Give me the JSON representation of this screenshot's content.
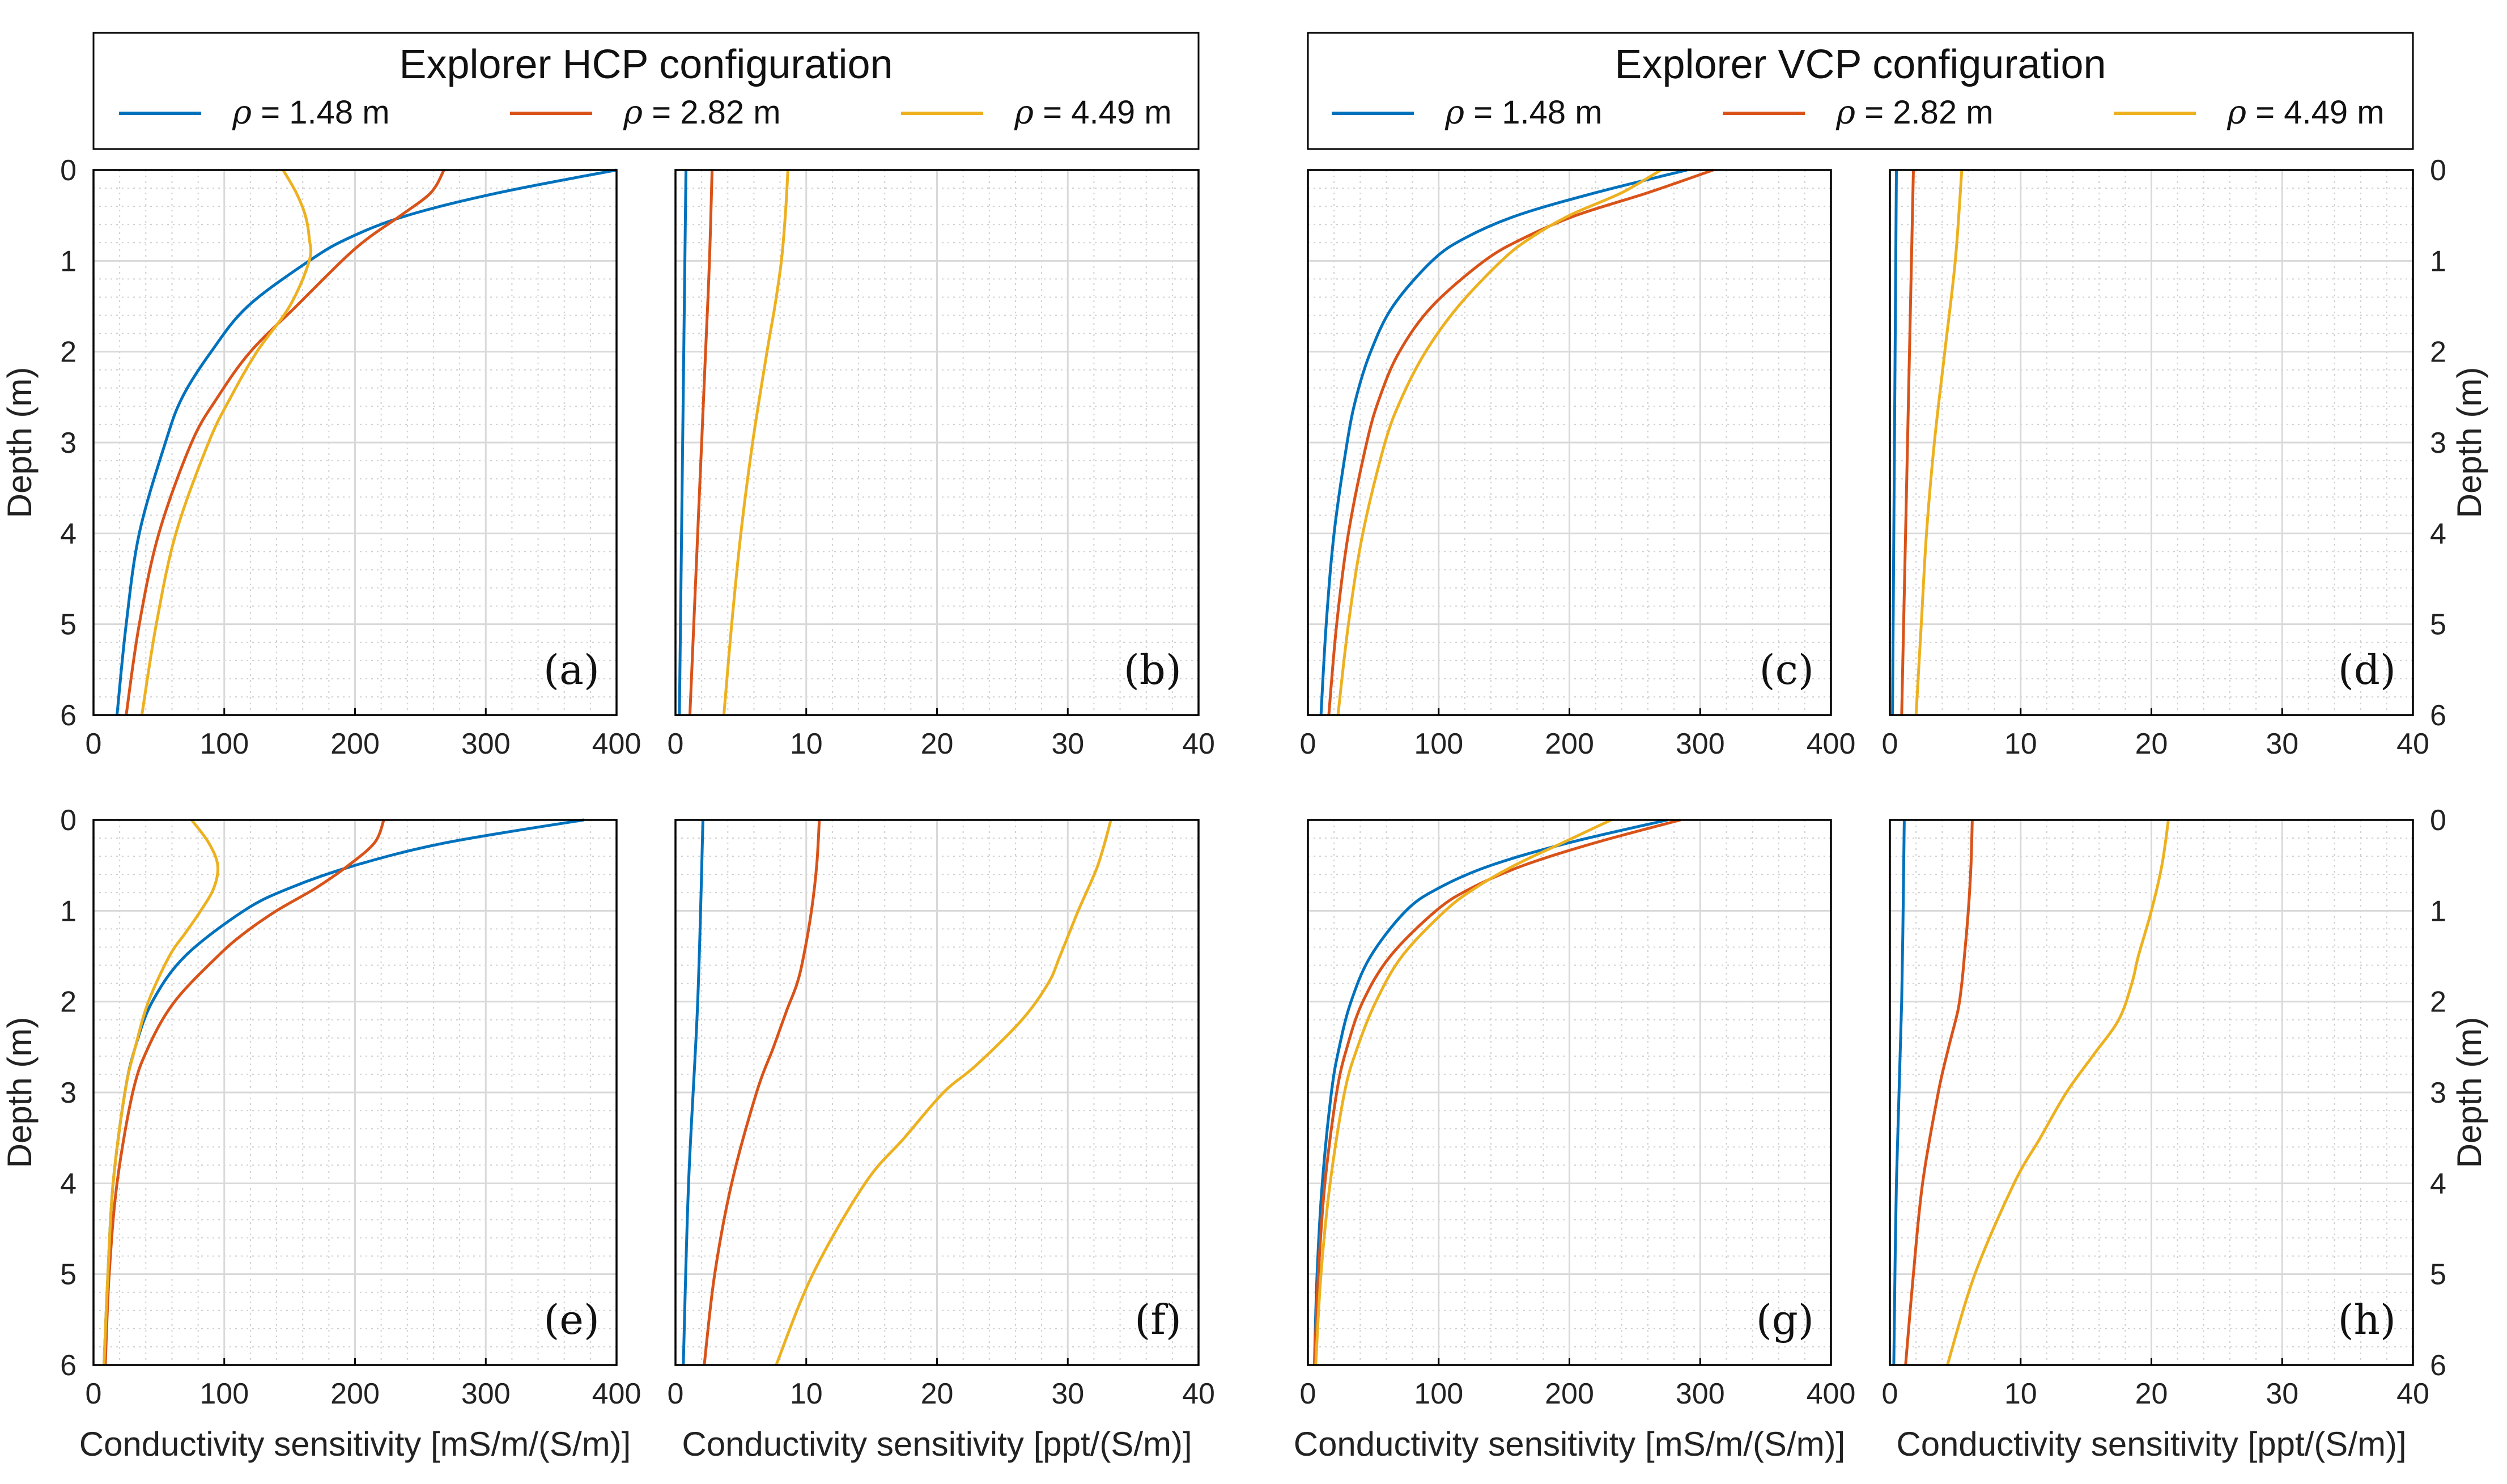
{
  "legends": [
    {
      "title": "Explorer HCP configuration",
      "entries": [
        {
          "symbol": "ρ",
          "text": " = 1.48 m",
          "color": "#0072BD"
        },
        {
          "symbol": "ρ",
          "text": " = 2.82 m",
          "color": "#D95319"
        },
        {
          "symbol": "ρ",
          "text": " = 4.49 m",
          "color": "#EDB120"
        }
      ]
    },
    {
      "title": "Explorer VCP configuration",
      "entries": [
        {
          "symbol": "ρ",
          "text": " = 1.48 m",
          "color": "#0072BD"
        },
        {
          "symbol": "ρ",
          "text": " = 2.82 m",
          "color": "#D95319"
        },
        {
          "symbol": "ρ",
          "text": " = 4.49 m",
          "color": "#EDB120"
        }
      ]
    }
  ],
  "chart_data": [
    {
      "id": "a",
      "type": "line",
      "panel_label": "(a)",
      "ylabel": "Depth (m)",
      "xlabel": "",
      "xlim": [
        0,
        400
      ],
      "ylim": [
        0,
        6
      ],
      "y_inverted": true,
      "xticks": [
        "0",
        "100",
        "200",
        "300",
        "400"
      ],
      "yticks": [
        "0",
        "1",
        "2",
        "3",
        "4",
        "5",
        "6"
      ],
      "grid": true,
      "y_axis_side": "left",
      "series": [
        {
          "name": "ρ = 1.48 m",
          "color": "#0072BD",
          "y": [
            0,
            0.25,
            0.5,
            0.75,
            1,
            1.5,
            2,
            2.5,
            3,
            4,
            5,
            6
          ],
          "x": [
            400,
            310,
            240,
            195,
            165,
            118,
            90,
            68,
            55,
            35,
            25,
            18
          ]
        },
        {
          "name": "ρ = 2.82 m",
          "color": "#D95319",
          "y": [
            0,
            0.25,
            0.5,
            0.75,
            1,
            1.5,
            2,
            2.5,
            3,
            4,
            5,
            6
          ],
          "x": [
            268,
            258,
            235,
            210,
            190,
            155,
            120,
            95,
            75,
            50,
            35,
            25
          ]
        },
        {
          "name": "ρ = 4.49 m",
          "color": "#EDB120",
          "y": [
            0,
            0.25,
            0.5,
            0.75,
            1,
            1.5,
            2,
            2.5,
            3,
            4,
            5,
            6
          ],
          "x": [
            145,
            155,
            162,
            165,
            165,
            150,
            125,
            105,
            88,
            63,
            48,
            37
          ]
        }
      ]
    },
    {
      "id": "b",
      "type": "line",
      "panel_label": "(b)",
      "ylabel": "",
      "xlabel": "",
      "xlim": [
        0,
        40
      ],
      "ylim": [
        0,
        6
      ],
      "y_inverted": true,
      "xticks": [
        "0",
        "10",
        "20",
        "30",
        "40"
      ],
      "yticks": [],
      "grid": true,
      "y_axis_side": "none",
      "series": [
        {
          "name": "ρ = 1.48 m",
          "color": "#0072BD",
          "y": [
            0,
            6
          ],
          "x": [
            0.8,
            0.3
          ]
        },
        {
          "name": "ρ = 2.82 m",
          "color": "#D95319",
          "y": [
            0,
            1,
            2,
            3,
            4,
            5,
            6
          ],
          "x": [
            2.8,
            2.6,
            2.3,
            2.0,
            1.7,
            1.4,
            1.1
          ]
        },
        {
          "name": "ρ = 4.49 m",
          "color": "#EDB120",
          "y": [
            0,
            0.5,
            1,
            1.5,
            2,
            3,
            4,
            5,
            6
          ],
          "x": [
            8.6,
            8.4,
            8.1,
            7.6,
            7.0,
            5.9,
            5.0,
            4.3,
            3.7
          ]
        }
      ]
    },
    {
      "id": "c",
      "type": "line",
      "panel_label": "(c)",
      "ylabel": "",
      "xlabel": "",
      "xlim": [
        0,
        400
      ],
      "ylim": [
        0,
        6
      ],
      "y_inverted": true,
      "xticks": [
        "0",
        "100",
        "200",
        "300",
        "400"
      ],
      "yticks": [],
      "grid": true,
      "y_axis_side": "none",
      "series": [
        {
          "name": "ρ = 1.48 m",
          "color": "#0072BD",
          "y": [
            0,
            0.25,
            0.5,
            0.75,
            1,
            1.5,
            2,
            2.5,
            3,
            4,
            5,
            6
          ],
          "x": [
            290,
            220,
            160,
            120,
            95,
            65,
            48,
            37,
            30,
            20,
            14,
            10
          ]
        },
        {
          "name": "ρ = 2.82 m",
          "color": "#D95319",
          "y": [
            0,
            0.25,
            0.5,
            0.75,
            1,
            1.5,
            2,
            2.5,
            3,
            4,
            5,
            6
          ],
          "x": [
            310,
            260,
            205,
            165,
            135,
            95,
            70,
            55,
            45,
            31,
            22,
            16
          ]
        },
        {
          "name": "ρ = 4.49 m",
          "color": "#EDB120",
          "y": [
            0,
            0.25,
            0.5,
            0.75,
            1,
            1.5,
            2,
            2.5,
            3,
            4,
            5,
            6
          ],
          "x": [
            270,
            240,
            200,
            170,
            148,
            115,
            90,
            72,
            59,
            42,
            31,
            23
          ]
        }
      ]
    },
    {
      "id": "d",
      "type": "line",
      "panel_label": "(d)",
      "ylabel": "Depth (m)",
      "xlabel": "",
      "xlim": [
        0,
        40
      ],
      "ylim": [
        0,
        6
      ],
      "y_inverted": true,
      "xticks": [
        "0",
        "10",
        "20",
        "30",
        "40"
      ],
      "yticks": [
        "0",
        "1",
        "2",
        "3",
        "4",
        "5",
        "6"
      ],
      "grid": true,
      "y_axis_side": "right",
      "series": [
        {
          "name": "ρ = 1.48 m",
          "color": "#0072BD",
          "y": [
            0,
            6
          ],
          "x": [
            0.5,
            0.2
          ]
        },
        {
          "name": "ρ = 2.82 m",
          "color": "#D95319",
          "y": [
            0,
            2,
            4,
            6
          ],
          "x": [
            1.8,
            1.5,
            1.2,
            0.9
          ]
        },
        {
          "name": "ρ = 4.49 m",
          "color": "#EDB120",
          "y": [
            0,
            1,
            2,
            3,
            4,
            5,
            6
          ],
          "x": [
            5.5,
            5.0,
            4.2,
            3.4,
            2.8,
            2.4,
            2.0
          ]
        }
      ]
    },
    {
      "id": "e",
      "type": "line",
      "panel_label": "(e)",
      "ylabel": "Depth (m)",
      "xlabel": "Conductivity sensitivity [mS/m/(S/m)]",
      "xlim": [
        0,
        400
      ],
      "ylim": [
        0,
        6
      ],
      "y_inverted": true,
      "xticks": [
        "0",
        "100",
        "200",
        "300",
        "400"
      ],
      "yticks": [
        "0",
        "1",
        "2",
        "3",
        "4",
        "5",
        "6"
      ],
      "grid": true,
      "y_axis_side": "left",
      "series": [
        {
          "name": "ρ = 1.48 m",
          "color": "#0072BD",
          "y": [
            0,
            0.25,
            0.5,
            0.75,
            1,
            1.5,
            2,
            2.5,
            3,
            4,
            5,
            6
          ],
          "x": [
            375,
            270,
            200,
            150,
            115,
            70,
            45,
            32,
            24,
            15,
            11,
            8
          ]
        },
        {
          "name": "ρ = 2.82 m",
          "color": "#D95319",
          "y": [
            0,
            0.25,
            0.5,
            0.75,
            1,
            1.25,
            1.5,
            2,
            2.5,
            3,
            4,
            5,
            6
          ],
          "x": [
            222,
            215,
            195,
            170,
            140,
            115,
            95,
            62,
            42,
            30,
            18,
            12,
            9
          ]
        },
        {
          "name": "ρ = 4.49 m",
          "color": "#EDB120",
          "y": [
            0,
            0.25,
            0.5,
            0.75,
            1,
            1.25,
            1.5,
            2,
            2.5,
            3,
            4,
            5,
            6
          ],
          "x": [
            75,
            88,
            95,
            92,
            82,
            70,
            58,
            42,
            32,
            24,
            15,
            11,
            8
          ]
        }
      ]
    },
    {
      "id": "f",
      "type": "line",
      "panel_label": "(f)",
      "ylabel": "",
      "xlabel": "Conductivity sensitivity [ppt/(S/m)]",
      "xlim": [
        0,
        40
      ],
      "ylim": [
        0,
        6
      ],
      "y_inverted": true,
      "xticks": [
        "0",
        "10",
        "20",
        "30",
        "40"
      ],
      "yticks": [],
      "grid": true,
      "y_axis_side": "none",
      "series": [
        {
          "name": "ρ = 1.48 m",
          "color": "#0072BD",
          "y": [
            0,
            2,
            4,
            6
          ],
          "x": [
            2.1,
            1.7,
            1.0,
            0.6
          ]
        },
        {
          "name": "ρ = 2.82 m",
          "color": "#D95319",
          "y": [
            0,
            0.5,
            1,
            1.5,
            1.8,
            2.1,
            2.5,
            3,
            4,
            5,
            6
          ],
          "x": [
            11,
            10.8,
            10.4,
            9.8,
            9.3,
            8.5,
            7.5,
            6.2,
            4.3,
            3.0,
            2.2
          ]
        },
        {
          "name": "ρ = 4.49 m",
          "color": "#EDB120",
          "y": [
            0,
            0.5,
            1,
            1.5,
            1.8,
            2.2,
            2.7,
            3,
            3.5,
            4,
            5,
            6
          ],
          "x": [
            33.3,
            32.3,
            30.8,
            29.4,
            28.5,
            26.5,
            23,
            20.5,
            17.5,
            14.5,
            10.5,
            7.7
          ]
        }
      ]
    },
    {
      "id": "g",
      "type": "line",
      "panel_label": "(g)",
      "ylabel": "",
      "xlabel": "Conductivity sensitivity [mS/m/(S/m)]",
      "xlim": [
        0,
        400
      ],
      "ylim": [
        0,
        6
      ],
      "y_inverted": true,
      "xticks": [
        "0",
        "100",
        "200",
        "300",
        "400"
      ],
      "yticks": [],
      "grid": true,
      "y_axis_side": "none",
      "series": [
        {
          "name": "ρ = 1.48 m",
          "color": "#0072BD",
          "y": [
            0,
            0.25,
            0.5,
            0.75,
            1,
            1.5,
            2,
            2.5,
            3,
            4,
            5,
            6
          ],
          "x": [
            275,
            200,
            140,
            100,
            75,
            48,
            33,
            24,
            18,
            11,
            7,
            5
          ]
        },
        {
          "name": "ρ = 2.82 m",
          "color": "#D95319",
          "y": [
            0,
            0.25,
            0.5,
            0.75,
            1,
            1.5,
            2,
            2.5,
            3,
            4,
            5,
            6
          ],
          "x": [
            285,
            220,
            165,
            125,
            98,
            63,
            42,
            30,
            22,
            13,
            8,
            5
          ]
        },
        {
          "name": "ρ = 4.49 m",
          "color": "#EDB120",
          "y": [
            0,
            0.25,
            0.5,
            0.75,
            1,
            1.5,
            2,
            2.5,
            3,
            4,
            5,
            6
          ],
          "x": [
            232,
            195,
            158,
            128,
            105,
            72,
            52,
            38,
            28,
            17,
            10,
            6
          ]
        }
      ]
    },
    {
      "id": "h",
      "type": "line",
      "panel_label": "(h)",
      "ylabel": "Depth (m)",
      "xlabel": "Conductivity sensitivity [ppt/(S/m)]",
      "xlim": [
        0,
        40
      ],
      "ylim": [
        0,
        6
      ],
      "y_inverted": true,
      "xticks": [
        "0",
        "10",
        "20",
        "30",
        "40"
      ],
      "yticks": [
        "0",
        "1",
        "2",
        "3",
        "4",
        "5",
        "6"
      ],
      "grid": true,
      "y_axis_side": "right",
      "series": [
        {
          "name": "ρ = 1.48 m",
          "color": "#0072BD",
          "y": [
            0,
            2,
            4,
            6
          ],
          "x": [
            1.1,
            0.9,
            0.5,
            0.3
          ]
        },
        {
          "name": "ρ = 2.82 m",
          "color": "#D95319",
          "y": [
            0,
            0.5,
            1,
            1.5,
            1.8,
            2.1,
            2.5,
            3,
            4,
            5,
            6
          ],
          "x": [
            6.3,
            6.2,
            6.0,
            5.7,
            5.5,
            5.2,
            4.5,
            3.7,
            2.5,
            1.8,
            1.2
          ]
        },
        {
          "name": "ρ = 4.49 m",
          "color": "#EDB120",
          "y": [
            0,
            0.5,
            1,
            1.5,
            1.8,
            2.2,
            2.6,
            3,
            3.5,
            4,
            5,
            6
          ],
          "x": [
            21.3,
            20.8,
            20.0,
            19.0,
            18.5,
            17.5,
            15.5,
            13.5,
            11.5,
            9.5,
            6.5,
            4.4
          ]
        }
      ]
    }
  ]
}
